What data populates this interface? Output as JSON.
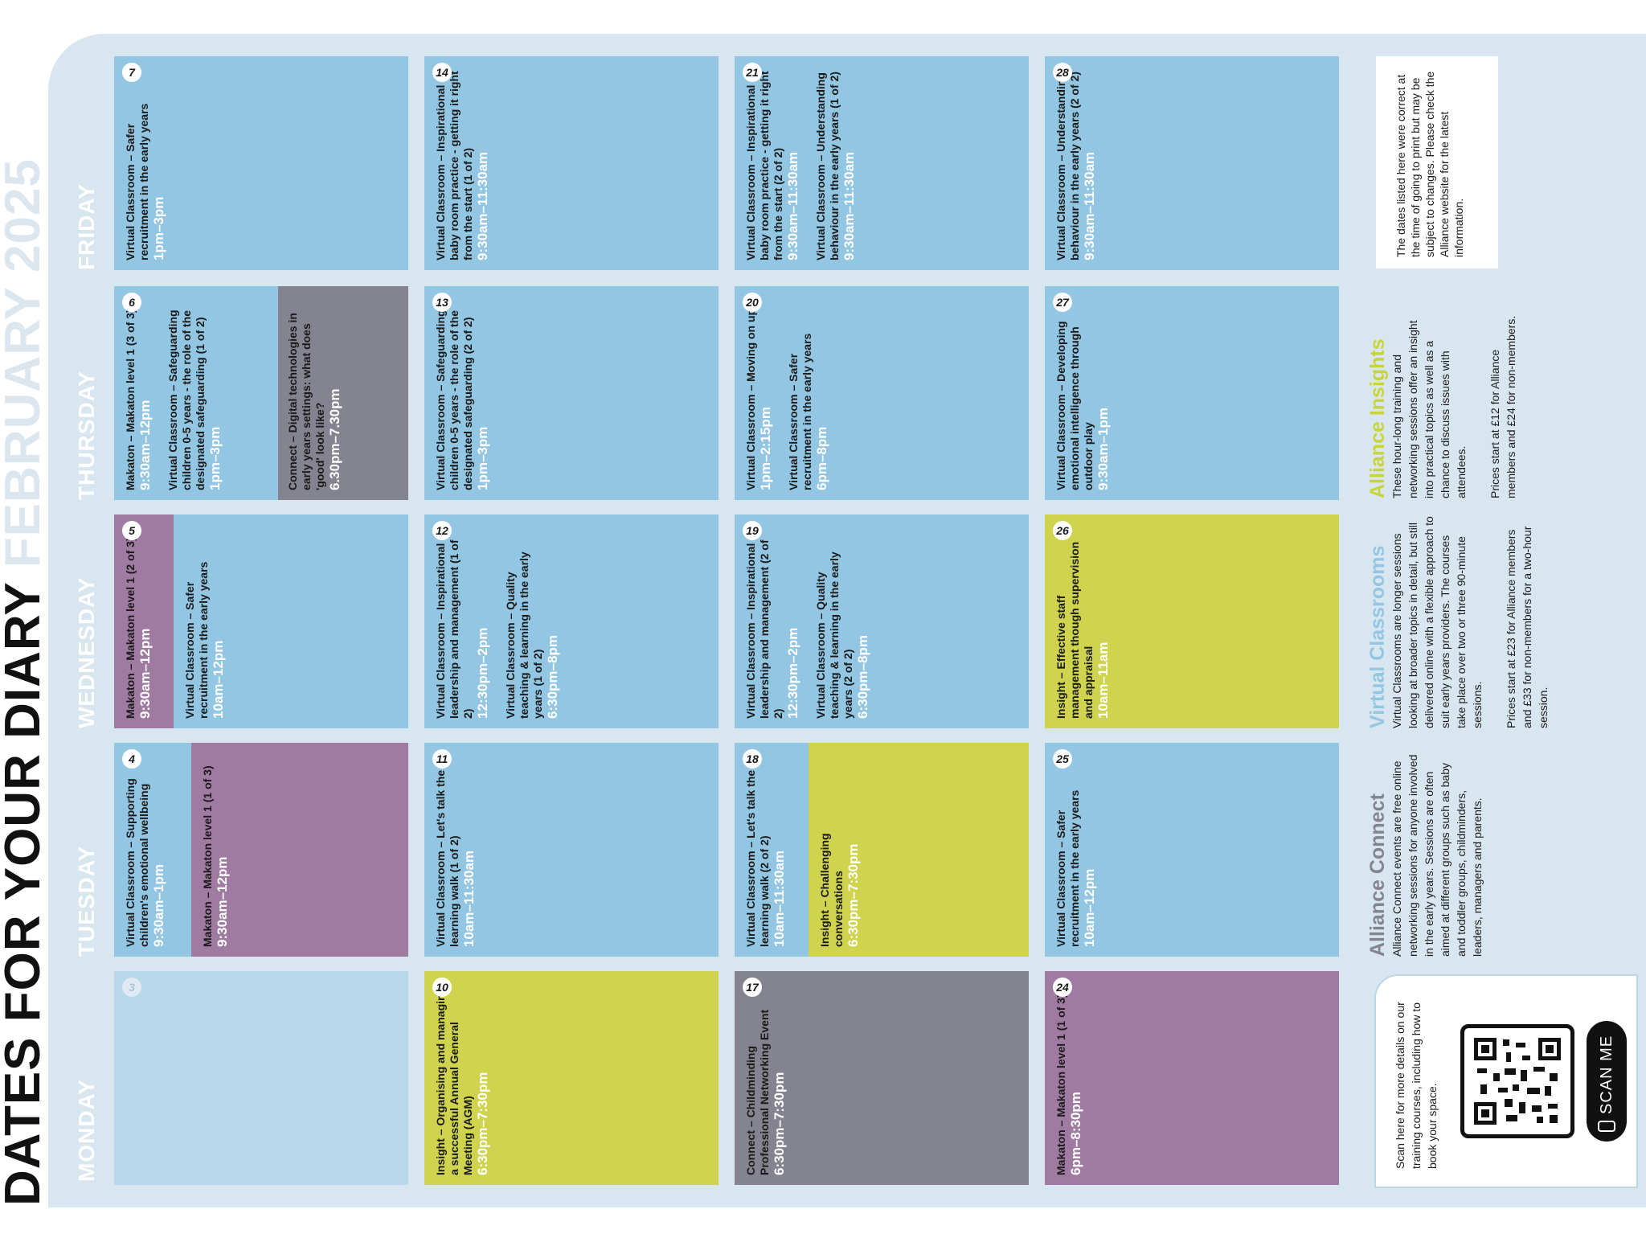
{
  "title": {
    "part1": "DATES FOR YOUR DIARY",
    "part2": "FEBRUARY 2025"
  },
  "days": {
    "monday": "MONDAY",
    "tuesday": "TUESDAY",
    "wednesday": "WEDNESDAY",
    "thursday": "THURSDAY",
    "friday": "FRIDAY"
  },
  "weeks": [
    {
      "monday": {
        "date": "3",
        "panels": [
          {
            "color": "pale",
            "events": []
          }
        ]
      },
      "tuesday": {
        "date": "4",
        "panels": [
          {
            "color": "blue",
            "events": [
              {
                "title": "Virtual Classroom – Supporting children's emotional wellbeing",
                "time": "9:30am–1pm"
              }
            ]
          },
          {
            "color": "purple",
            "events": [
              {
                "title": "Makaton – Makaton level 1 (1 of 3)",
                "time": "9:30am–12pm"
              }
            ]
          }
        ]
      },
      "wednesday": {
        "date": "5",
        "panels": [
          {
            "color": "purple",
            "events": [
              {
                "title": "Makaton – Makaton level 1 (2 of 3)",
                "time": "9:30am–12pm"
              }
            ]
          },
          {
            "color": "blue",
            "events": [
              {
                "title": "Virtual Classroom – Safer recruitment in the early years",
                "time": "10am–12pm"
              }
            ]
          }
        ]
      },
      "thursday": {
        "date": "6",
        "panels": [
          {
            "color": "blue",
            "events": [
              {
                "title": "Makaton – Makaton level 1 (3 of 3)",
                "time": "9:30am–12pm"
              },
              {
                "title": "Virtual Classroom – Safeguarding children 0-5 years - the role of the designated safeguarding (1 of 2)",
                "time": "1pm–3pm"
              }
            ]
          },
          {
            "color": "grey",
            "events": [
              {
                "title": "Connect – Digital technologies in early years settings: what does 'good' look like?",
                "time": "6.30pm–7.30pm"
              }
            ]
          }
        ]
      },
      "friday": {
        "date": "7",
        "panels": [
          {
            "color": "blue",
            "events": [
              {
                "title": "Virtual Classroom – Safer recruitment in the early years",
                "time": "1pm–3pm"
              }
            ]
          }
        ]
      }
    },
    {
      "monday": {
        "date": "10",
        "panels": [
          {
            "color": "lime",
            "events": [
              {
                "title": "Insight – Organising and managing a successful Annual General Meeting (AGM)",
                "time": "6:30pm–7:30pm"
              }
            ]
          }
        ]
      },
      "tuesday": {
        "date": "11",
        "panels": [
          {
            "color": "blue",
            "events": [
              {
                "title": "Virtual Classroom – Let's talk the learning walk (1 of 2)",
                "time": "10am–11:30am"
              }
            ]
          }
        ]
      },
      "wednesday": {
        "date": "12",
        "panels": [
          {
            "color": "blue",
            "events": [
              {
                "title": "Virtual Classroom – Inspirational leadership and management (1 of 2)",
                "time": "12:30pm–2pm"
              },
              {
                "title": "Virtual Classroom – Quality teaching & learning in the early years (1 of 2)",
                "time": "6:30pm–8pm"
              }
            ]
          }
        ]
      },
      "thursday": {
        "date": "13",
        "panels": [
          {
            "color": "blue",
            "events": [
              {
                "title": "Virtual Classroom – Safeguarding children 0-5 years - the role of the designated safeguarding (2 of 2)",
                "time": "1pm–3pm"
              }
            ]
          }
        ]
      },
      "friday": {
        "date": "14",
        "panels": [
          {
            "color": "blue",
            "events": [
              {
                "title": "Virtual Classroom – Inspirational baby room practice - getting it right from the start (1 of 2)",
                "time": "9:30am–11:30am"
              }
            ]
          }
        ]
      }
    },
    {
      "monday": {
        "date": "17",
        "panels": [
          {
            "color": "grey",
            "events": [
              {
                "title": "Connect – Childminding Professional Networking Event",
                "time": "6:30pm–7:30pm"
              }
            ]
          }
        ]
      },
      "tuesday": {
        "date": "18",
        "panels": [
          {
            "color": "blue",
            "events": [
              {
                "title": "Virtual Classroom – Let's talk the learning walk (2 of 2)",
                "time": "10am–11:30am"
              }
            ]
          },
          {
            "color": "lime",
            "events": [
              {
                "title": "Insight – Challenging conversations",
                "time": "6:30pm–7:30pm"
              }
            ]
          }
        ]
      },
      "wednesday": {
        "date": "19",
        "panels": [
          {
            "color": "blue",
            "events": [
              {
                "title": "Virtual Classroom – Inspirational leadership and management (2 of 2)",
                "time": "12:30pm–2pm"
              },
              {
                "title": "Virtual Classroom – Quality teaching & learning in the early years (2 of 2)",
                "time": "6:30pm–8pm"
              }
            ]
          }
        ]
      },
      "thursday": {
        "date": "20",
        "panels": [
          {
            "color": "blue",
            "events": [
              {
                "title": "Virtual Classroom – Moving on up!",
                "time": "1pm–2:15pm"
              },
              {
                "title": "Virtual Classroom – Safer recruitment in the early years",
                "time": "6pm–8pm"
              }
            ]
          }
        ]
      },
      "friday": {
        "date": "21",
        "panels": [
          {
            "color": "blue",
            "events": [
              {
                "title": "Virtual Classroom – Inspirational baby room practice - getting it right from the start (2 of 2)",
                "time": "9:30am–11:30am"
              },
              {
                "title": "Virtual Classroom – Understanding behaviour in the early years (1 of 2)",
                "time": "9:30am–11:30am"
              }
            ]
          }
        ]
      }
    },
    {
      "monday": {
        "date": "24",
        "panels": [
          {
            "color": "purple",
            "events": [
              {
                "title": "Makaton – Makaton level 1 (1 of 3)",
                "time": "6pm–8:30pm"
              }
            ]
          }
        ]
      },
      "tuesday": {
        "date": "25",
        "panels": [
          {
            "color": "blue",
            "events": [
              {
                "title": "Virtual Classroom – Safer recruitment in the early years",
                "time": "10am–12pm"
              }
            ]
          }
        ]
      },
      "wednesday": {
        "date": "26",
        "panels": [
          {
            "color": "lime",
            "events": [
              {
                "title": "Insight – Effective staff management though supervision and appraisal",
                "time": "10am–11am"
              }
            ]
          }
        ]
      },
      "thursday": {
        "date": "27",
        "panels": [
          {
            "color": "blue",
            "events": [
              {
                "title": "Virtual Classroom – Developing emotional intelligence through outdoor play",
                "time": "9:30am–1pm"
              }
            ]
          }
        ]
      },
      "friday": {
        "date": "28",
        "panels": [
          {
            "color": "blue",
            "events": [
              {
                "title": "Virtual Classroom – Understanding behaviour in the early years (2 of 2)",
                "time": "9:30am–11:30am"
              }
            ]
          }
        ]
      }
    }
  ],
  "notice": "The dates listed here were correct at the time of going to print but may be subject to changes. Please check the Alliance website for the latest information.",
  "info": {
    "insights": {
      "heading": "Alliance Insights",
      "color": "#c9d43b",
      "body": "These hour-long training and networking sessions offer an insight into practical topics as well as a chance to discuss issues with attendees.",
      "prices": "Prices start at £12 for Alliance members and £24 for non-members."
    },
    "classrooms": {
      "heading": "Virtual Classrooms",
      "color": "#93c6e3",
      "body": "Virtual Classrooms are longer sessions looking at broader topics in detail, but still delivered online with a flexible approach to suit early years providers. The courses take place over two or three 90-minute sessions.",
      "prices": "Prices start at £23 for Alliance members and £33 for non-members for a two-hour session."
    },
    "connect": {
      "heading": "Alliance Connect",
      "color": "#83848f",
      "body": "Alliance Connect events are free online networking sessions for anyone involved in the early years. Sessions are often aimed at different groups such as baby and toddler groups, childminders, leaders, managers and parents."
    }
  },
  "scan": {
    "text": "Scan here for more details on our training courses, including how to book your space.",
    "button": "SCAN ME"
  },
  "colors": {
    "blue": "#93c6e3",
    "pale": "#b9d7ea",
    "purple": "#a07ba1",
    "lime": "#cfd34e",
    "grey": "#83848f",
    "background": "#d8e7ef"
  }
}
